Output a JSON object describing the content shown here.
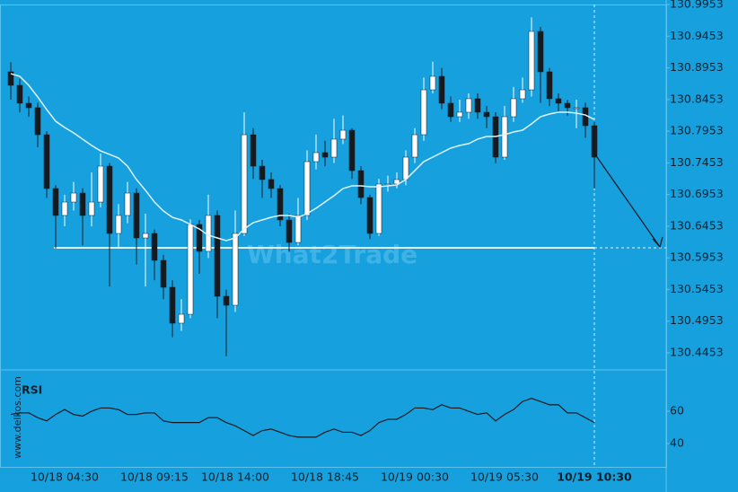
{
  "chart_data": {
    "type": "candlestick",
    "side_text": "www.delkos.com",
    "watermark": "What2Trade",
    "categories": [
      null,
      null,
      null,
      null,
      null,
      null,
      "10/18 04:30",
      null,
      null,
      null,
      null,
      null,
      null,
      null,
      null,
      null,
      "10/18 09:15",
      null,
      null,
      null,
      null,
      null,
      null,
      null,
      null,
      "10/18 14:00",
      null,
      null,
      null,
      null,
      null,
      null,
      null,
      null,
      null,
      "10/18 18:45",
      null,
      null,
      null,
      null,
      null,
      null,
      null,
      null,
      null,
      "10/19 00:30",
      null,
      null,
      null,
      null,
      null,
      null,
      null,
      null,
      null,
      "10/19 05:30",
      null,
      null,
      null,
      null,
      null,
      null,
      null,
      null,
      null,
      "10/19 10:30"
    ],
    "open": [
      130.889,
      130.8677,
      130.8394,
      130.8323,
      130.7897,
      130.7047,
      130.6622,
      130.6834,
      130.6976,
      130.6622,
      130.6834,
      130.7401,
      130.6338,
      130.6622,
      130.6976,
      130.6267,
      130.6338,
      130.5913,
      130.5488,
      130.4921,
      130.5062,
      130.648,
      130.6055,
      130.6622,
      130.5346,
      130.5204,
      130.6338,
      130.7897,
      130.7401,
      130.7189,
      130.7047,
      130.6551,
      130.6196,
      130.6622,
      130.7472,
      130.7614,
      130.7543,
      130.7827,
      130.7968,
      130.733,
      130.6905,
      130.6338,
      130.7118,
      130.7118,
      130.7189,
      130.7543,
      130.7897,
      130.8606,
      130.8819,
      130.8394,
      130.8181,
      130.8252,
      130.8465,
      130.8252,
      130.8181,
      130.7543,
      130.8181,
      130.8465,
      130.8606,
      130.9528,
      130.889,
      130.8465,
      130.8394,
      130.8323,
      130.8323,
      130.8039
    ],
    "high": [
      130.904,
      130.878,
      130.85,
      130.84,
      130.795,
      130.71,
      130.695,
      130.715,
      130.705,
      130.73,
      130.76,
      130.745,
      130.68,
      130.715,
      130.705,
      130.665,
      130.64,
      130.6,
      130.56,
      130.53,
      130.656,
      130.655,
      130.695,
      130.67,
      130.545,
      130.67,
      130.825,
      130.8,
      130.75,
      130.73,
      130.71,
      130.665,
      130.69,
      130.765,
      130.79,
      130.78,
      130.815,
      130.82,
      130.8,
      130.74,
      130.695,
      130.72,
      130.725,
      130.73,
      130.765,
      130.8,
      130.88,
      130.905,
      130.895,
      130.85,
      130.845,
      130.855,
      130.855,
      130.835,
      130.825,
      130.835,
      130.865,
      130.88,
      130.975,
      130.96,
      130.895,
      130.855,
      130.845,
      130.845,
      130.84,
      130.81
    ],
    "low": [
      130.845,
      130.825,
      130.818,
      130.77,
      130.69,
      130.61,
      130.645,
      130.67,
      130.615,
      130.645,
      130.675,
      130.55,
      130.61,
      130.65,
      130.585,
      130.55,
      130.56,
      130.53,
      130.47,
      130.48,
      130.5,
      130.57,
      130.595,
      130.5,
      130.44,
      130.51,
      130.63,
      130.72,
      130.69,
      130.69,
      130.645,
      130.605,
      130.615,
      130.655,
      130.735,
      130.74,
      130.745,
      130.775,
      130.72,
      130.68,
      130.625,
      130.63,
      130.7,
      130.705,
      130.71,
      130.745,
      130.78,
      130.855,
      130.83,
      130.81,
      130.81,
      130.815,
      130.815,
      130.8,
      130.745,
      130.75,
      130.81,
      130.84,
      130.85,
      130.84,
      130.835,
      130.825,
      130.82,
      130.8,
      130.785,
      130.705
    ],
    "close": [
      130.8677,
      130.8394,
      130.8323,
      130.7897,
      130.7047,
      130.6622,
      130.6834,
      130.6976,
      130.6622,
      130.6834,
      130.7401,
      130.6338,
      130.6622,
      130.6976,
      130.6267,
      130.6338,
      130.5913,
      130.5488,
      130.4921,
      130.5062,
      130.648,
      130.6055,
      130.6622,
      130.5346,
      130.5204,
      130.6338,
      130.7897,
      130.7401,
      130.7189,
      130.7047,
      130.6551,
      130.6196,
      130.6622,
      130.7472,
      130.7614,
      130.7543,
      130.7827,
      130.7968,
      130.733,
      130.6905,
      130.6338,
      130.7118,
      130.7118,
      130.7189,
      130.7543,
      130.7897,
      130.8606,
      130.8819,
      130.8394,
      130.8181,
      130.8252,
      130.8465,
      130.8252,
      130.8181,
      130.7543,
      130.8181,
      130.8465,
      130.8606,
      130.9528,
      130.889,
      130.8465,
      130.8394,
      130.8323,
      130.8323,
      130.8039,
      130.7543
    ],
    "up_color": "#ffffff",
    "down_color": "#151a1e",
    "ma": {
      "color": "#dff3fc",
      "values": [
        130.8861,
        130.8819,
        130.8677,
        130.8493,
        130.8294,
        130.811,
        130.8011,
        130.7926,
        130.7827,
        130.7727,
        130.7642,
        130.7586,
        130.7529,
        130.7401,
        130.7189,
        130.7019,
        130.6834,
        130.6693,
        130.6593,
        130.6551,
        130.648,
        130.6409,
        130.631,
        130.6267,
        130.6225,
        130.6267,
        130.6409,
        130.6508,
        130.6551,
        130.6593,
        130.6622,
        130.6622,
        130.6593,
        130.665,
        130.6735,
        130.6834,
        130.6934,
        130.7047,
        130.7089,
        130.7089,
        130.7075,
        130.7075,
        130.7089,
        130.7104,
        130.7189,
        130.733,
        130.7472,
        130.7543,
        130.7614,
        130.7685,
        130.7727,
        130.7756,
        130.7827,
        130.7869,
        130.7869,
        130.7897,
        130.794,
        130.7968,
        130.8068,
        130.8181,
        130.8224,
        130.8252,
        130.8252,
        130.8238,
        130.8209,
        130.8138
      ]
    },
    "support_level": 130.6112,
    "ylim": [
      130.4212,
      130.9953
    ],
    "yticks": [
      130.9953,
      130.9453,
      130.8953,
      130.8453,
      130.7953,
      130.7453,
      130.6953,
      130.6453,
      130.5953,
      130.5453,
      130.4953,
      130.4453
    ],
    "rsi": {
      "label": "RSI",
      "color": "#151a1e",
      "values": [
        58,
        59,
        59,
        56,
        54,
        58,
        61,
        58,
        57,
        60,
        62,
        62,
        61,
        58,
        58,
        59,
        59,
        54,
        53,
        53,
        53,
        53,
        56,
        56,
        53,
        51,
        48,
        45,
        48,
        49,
        47,
        45,
        44,
        44,
        44,
        47,
        49,
        47,
        47,
        45,
        48,
        53,
        55,
        55,
        58,
        62,
        62,
        61,
        64,
        62,
        62,
        60,
        58,
        59,
        54,
        58,
        61,
        66,
        68,
        66,
        64,
        64,
        59,
        59,
        56,
        53
      ],
      "ylim": [
        25.6,
        83.9
      ],
      "yticks": [
        60,
        40
      ]
    }
  }
}
